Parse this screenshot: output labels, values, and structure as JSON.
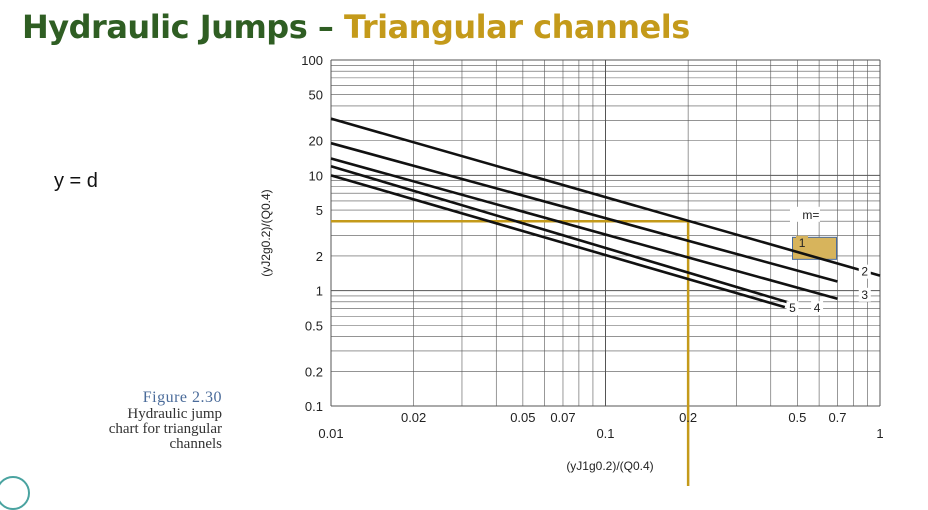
{
  "slide": {
    "title_part1": "Hydraulic Jumps",
    "title_dash": " – ",
    "title_part2": "Triangular channels",
    "variable_definition": "y = d",
    "figure_label": "Figure 2.30",
    "figure_caption_lines": [
      "Hydraulic jump",
      "chart for triangular",
      "channels"
    ]
  },
  "chart": {
    "x_axis_label": "(yJ1g0.2)/(Q0.4)",
    "y_axis_label": "(yJ2g0.2)/(Q0.4)",
    "x_scale": "log",
    "y_scale": "log",
    "x_range": [
      0.01,
      1
    ],
    "y_range": [
      0.1,
      100
    ],
    "x_tick_labels": [
      {
        "value": 0.01,
        "label": "0.01"
      },
      {
        "value": 0.02,
        "label": "0.02"
      },
      {
        "value": 0.05,
        "label": "0.05"
      },
      {
        "value": 0.07,
        "label": "0.07"
      },
      {
        "value": 0.1,
        "label": "0.1"
      },
      {
        "value": 0.2,
        "label": "0.2"
      },
      {
        "value": 0.5,
        "label": "0.5"
      },
      {
        "value": 0.7,
        "label": "0.7"
      },
      {
        "value": 1,
        "label": "1"
      }
    ],
    "y_tick_labels": [
      {
        "value": 0.1,
        "label": "0.1"
      },
      {
        "value": 0.2,
        "label": "0.2"
      },
      {
        "value": 0.5,
        "label": "0.5"
      },
      {
        "value": 1,
        "label": "1"
      },
      {
        "value": 2,
        "label": "2"
      },
      {
        "value": 5,
        "label": "5"
      },
      {
        "value": 10,
        "label": "10"
      },
      {
        "value": 20,
        "label": "20"
      },
      {
        "value": 50,
        "label": "50"
      },
      {
        "value": 100,
        "label": "100"
      }
    ],
    "legend_title": "m=",
    "curves": [
      {
        "m": "1",
        "points": [
          [
            0.01,
            31
          ],
          [
            1.0,
            1.35
          ]
        ]
      },
      {
        "m": "2",
        "points": [
          [
            0.01,
            19
          ],
          [
            0.7,
            1.2
          ]
        ]
      },
      {
        "m": "3",
        "points": [
          [
            0.01,
            14
          ],
          [
            0.7,
            0.85
          ]
        ]
      },
      {
        "m": "4",
        "points": [
          [
            0.01,
            12
          ],
          [
            0.5,
            0.75
          ]
        ]
      },
      {
        "m": "5",
        "points": [
          [
            0.01,
            10
          ],
          [
            0.45,
            0.72
          ]
        ]
      }
    ],
    "example_x": 0.2,
    "example_y": 4,
    "accent_color": "#c49a1a",
    "highlight_fill": "#d7b45c"
  }
}
